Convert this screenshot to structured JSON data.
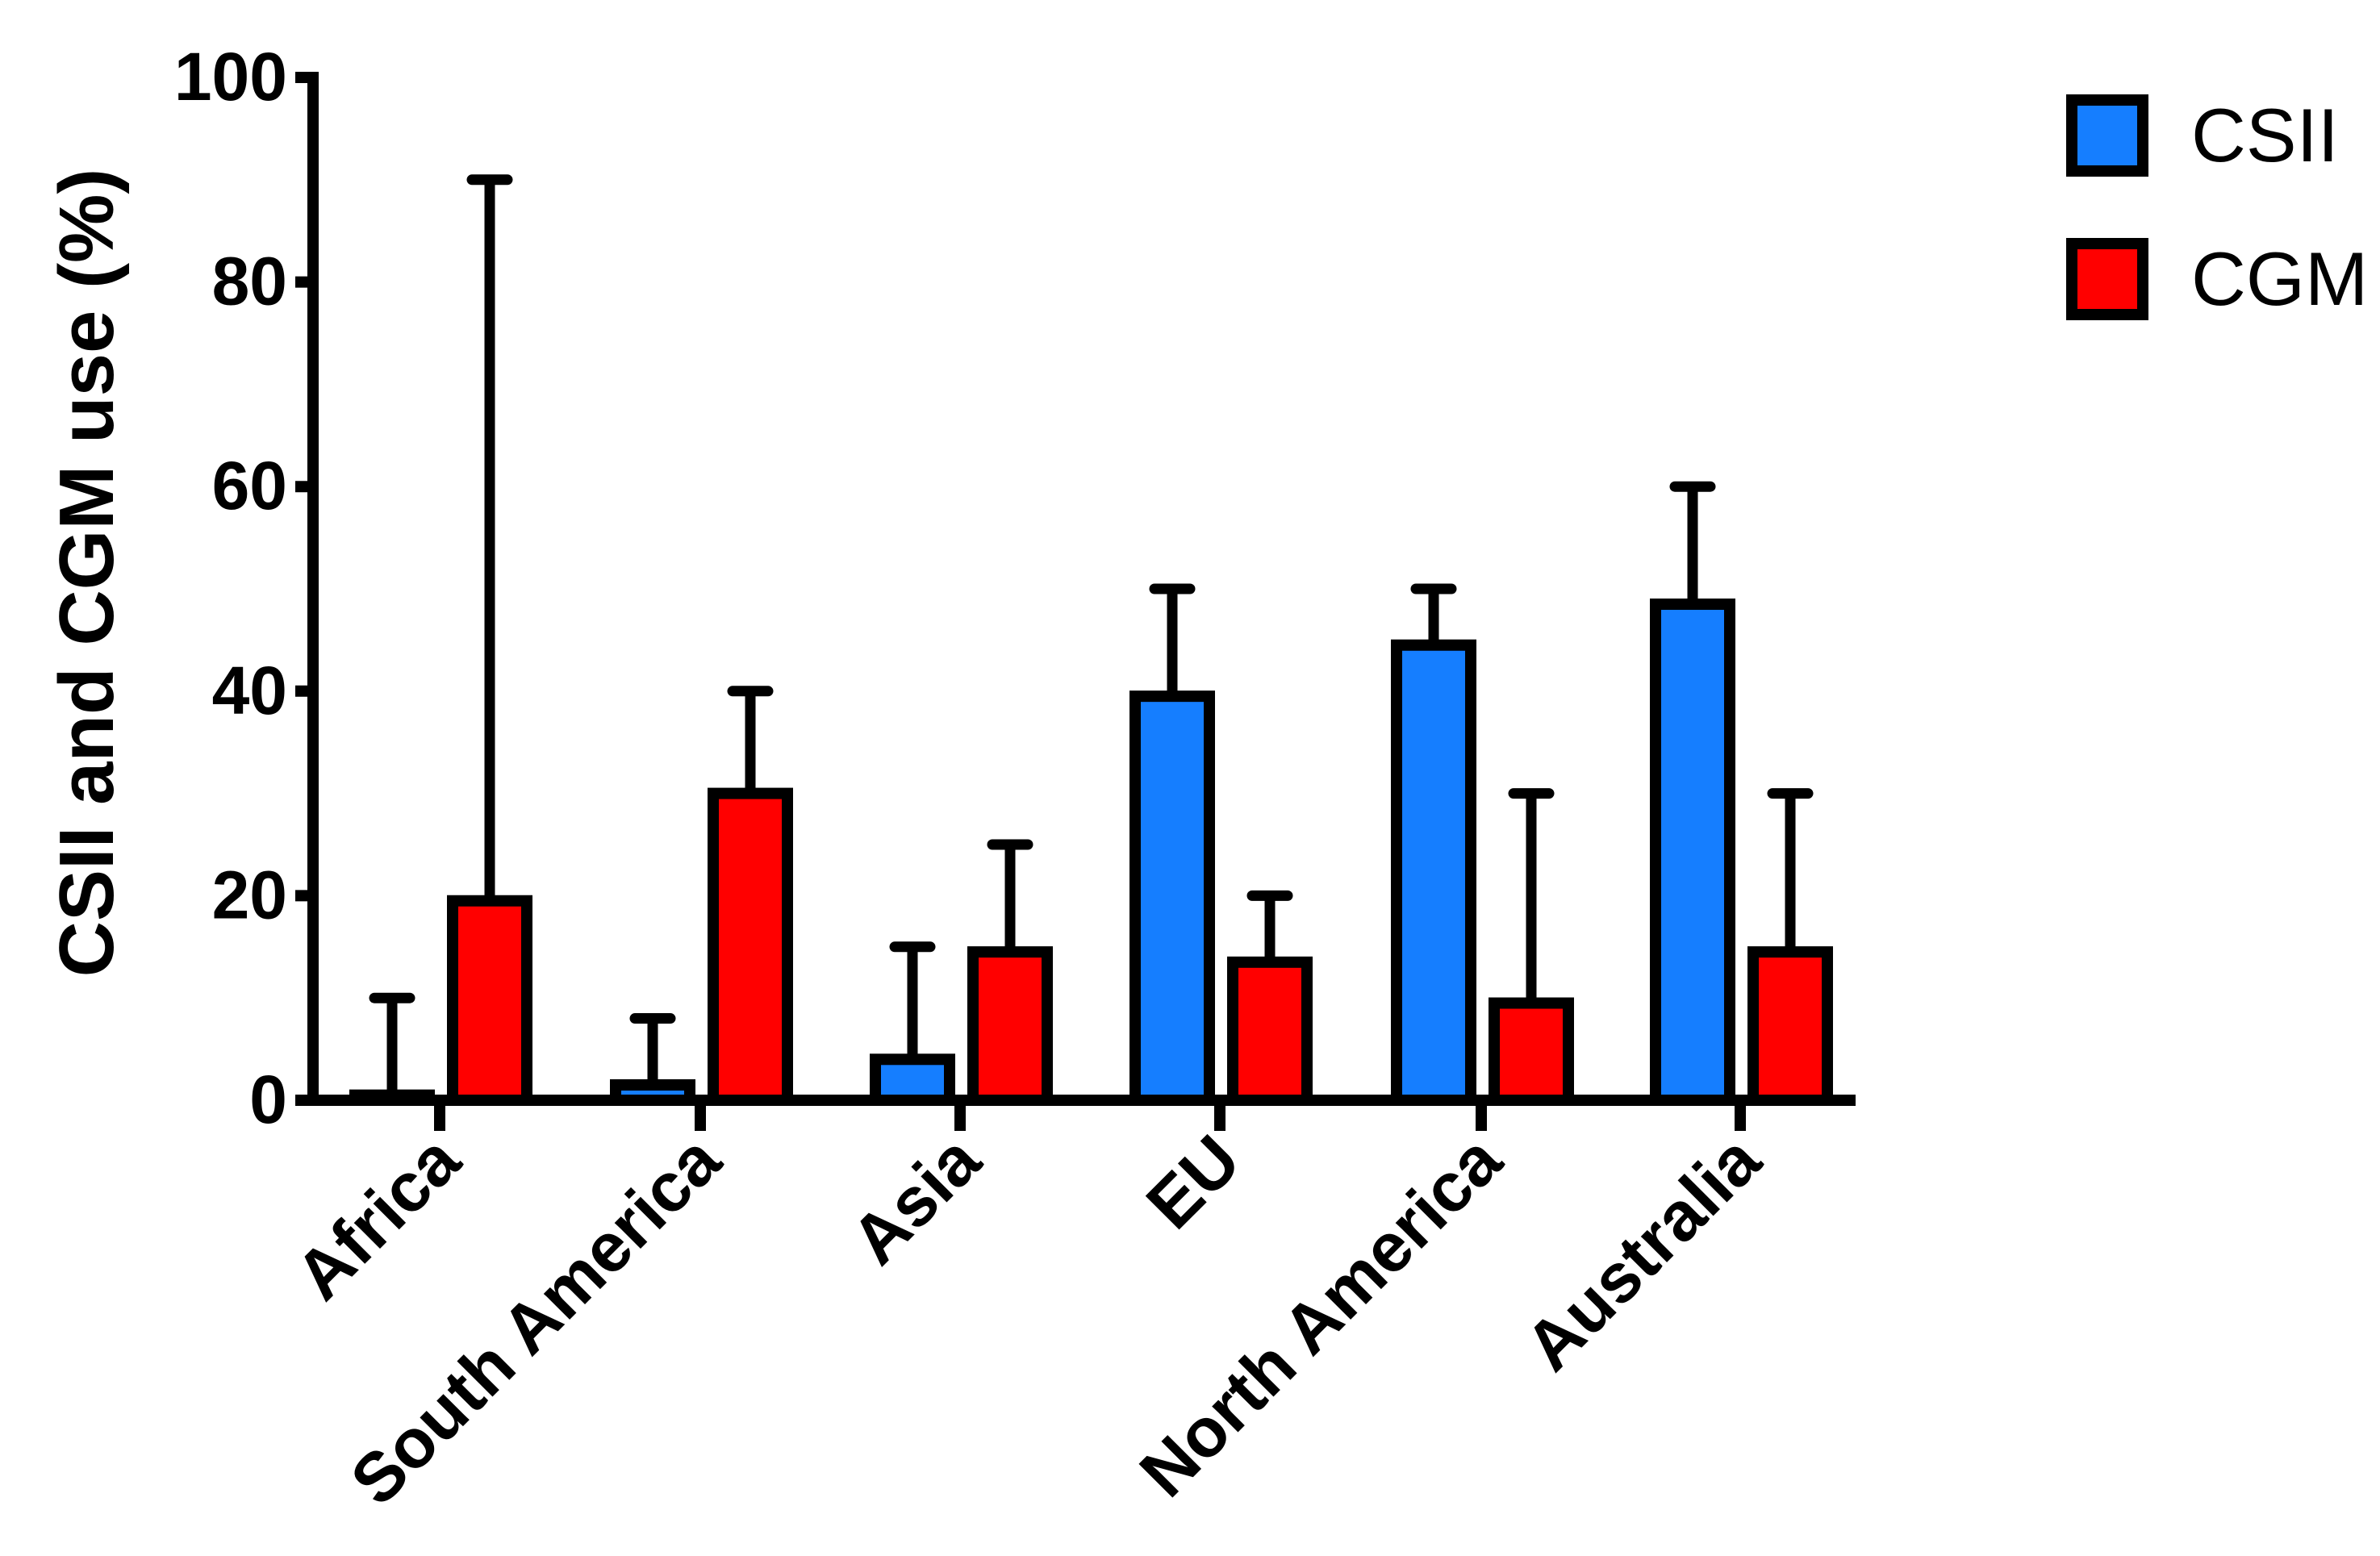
{
  "chart_data": {
    "type": "bar",
    "categories": [
      "Africa",
      "South America",
      "Asia",
      "EU",
      "North America",
      "Australia"
    ],
    "series": [
      {
        "name": "CSII",
        "color": "#157EFF",
        "values": [
          0.5,
          1.5,
          4,
          39.5,
          44.5,
          48.5
        ],
        "error_upper": [
          10,
          8,
          15,
          50,
          50,
          60
        ]
      },
      {
        "name": "CGM",
        "color": "#FF0000",
        "values": [
          19.5,
          30,
          14.5,
          13.5,
          9.5,
          14.5
        ],
        "error_upper": [
          90,
          40,
          25,
          20,
          30,
          30
        ]
      }
    ],
    "title": "",
    "xlabel": "",
    "ylabel": "CSII and CGM use (%)",
    "ylim": [
      0,
      100
    ],
    "yticks": [
      "0",
      "20",
      "40",
      "60",
      "80",
      "100"
    ],
    "grid": false,
    "legend_position": "top-right"
  }
}
